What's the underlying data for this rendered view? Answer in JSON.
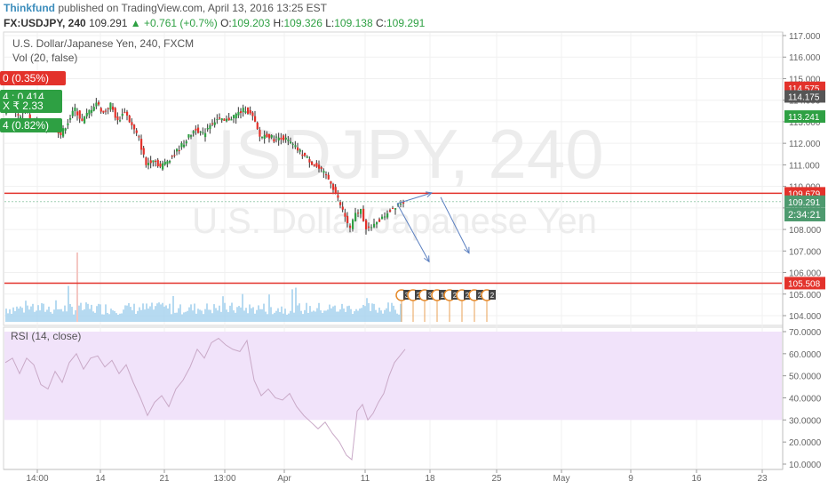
{
  "header": {
    "author": "Thinkfund",
    "published": "published on TradingView.com, April 13, 2016 13:25 EST",
    "symbol": "FX:USDJPY, 240",
    "last": "109.291",
    "change": "▲ +0.761 (+0.7%)",
    "o_label": "O:",
    "o_value": "109.203",
    "h_label": "H:",
    "h_value": "109.326",
    "l_label": "L:",
    "l_value": "109.138",
    "c_label": "C:",
    "c_value": "109.291"
  },
  "price_pane": {
    "title": "U.S. Dollar/Japanese Yen, 240, FXCM",
    "vol_label": "Vol (20, false)",
    "watermark_symbol": "USDJPY, 240",
    "watermark_name": "U.S. Dollar/Japanese Yen",
    "left_badges": [
      "0 (0.35%)",
      "4 : 0.414",
      "X ₹  2.33",
      "4 (0.82%)"
    ],
    "countdown": "2:34:21"
  },
  "rsi_pane": {
    "title": "RSI (14, close)"
  },
  "colors": {
    "up": "#2ea043",
    "down": "#e3322b",
    "line": "#e3322b",
    "rsi": "#c9a9c7",
    "rsi_band": "#f1e3fa",
    "arrow": "#5a7fc0",
    "volume": "#a9d3ee"
  },
  "chart_data": [
    {
      "type": "candlestick",
      "symbol": "USDJPY",
      "timeframe": "240",
      "x_tick_labels": [
        "14:00",
        "14",
        "21",
        "13:00",
        "Apr",
        "11",
        "18",
        "25",
        "May",
        "9",
        "16",
        "23"
      ],
      "y_ticks": [
        104.0,
        105.0,
        106.0,
        107.0,
        108.0,
        109.0,
        110.0,
        111.0,
        112.0,
        113.0,
        114.0,
        115.0,
        116.0,
        117.0
      ],
      "y_tick_labels": [
        "104.000",
        "105.000",
        "106.000",
        "107.000",
        "108.000",
        "109.000",
        "110.000",
        "111.000",
        "112.000",
        "113.000",
        "114.000",
        "115.000",
        "116.000",
        "117.000"
      ],
      "ylim": [
        103.5,
        117.2
      ],
      "close_path": [
        {
          "x": 0,
          "y": 113.5
        },
        {
          "x": 8,
          "y": 113.8
        },
        {
          "x": 16,
          "y": 113.2
        },
        {
          "x": 24,
          "y": 113.6
        },
        {
          "x": 32,
          "y": 113.0
        },
        {
          "x": 40,
          "y": 112.9
        },
        {
          "x": 48,
          "y": 112.6
        },
        {
          "x": 56,
          "y": 112.9
        },
        {
          "x": 64,
          "y": 112.4
        },
        {
          "x": 72,
          "y": 113.0
        },
        {
          "x": 80,
          "y": 113.6
        },
        {
          "x": 88,
          "y": 113.0
        },
        {
          "x": 96,
          "y": 113.5
        },
        {
          "x": 104,
          "y": 113.9
        },
        {
          "x": 112,
          "y": 113.4
        },
        {
          "x": 120,
          "y": 113.8
        },
        {
          "x": 128,
          "y": 113.0
        },
        {
          "x": 136,
          "y": 113.5
        },
        {
          "x": 144,
          "y": 112.8
        },
        {
          "x": 152,
          "y": 112.2
        },
        {
          "x": 160,
          "y": 111.0
        },
        {
          "x": 168,
          "y": 111.3
        },
        {
          "x": 176,
          "y": 110.9
        },
        {
          "x": 184,
          "y": 111.2
        },
        {
          "x": 192,
          "y": 111.5
        },
        {
          "x": 200,
          "y": 111.9
        },
        {
          "x": 208,
          "y": 112.3
        },
        {
          "x": 216,
          "y": 112.7
        },
        {
          "x": 224,
          "y": 112.4
        },
        {
          "x": 232,
          "y": 112.9
        },
        {
          "x": 240,
          "y": 113.1
        },
        {
          "x": 248,
          "y": 113.0
        },
        {
          "x": 256,
          "y": 113.2
        },
        {
          "x": 264,
          "y": 113.4
        },
        {
          "x": 272,
          "y": 113.6
        },
        {
          "x": 280,
          "y": 113.2
        },
        {
          "x": 288,
          "y": 112.3
        },
        {
          "x": 296,
          "y": 112.4
        },
        {
          "x": 304,
          "y": 112.2
        },
        {
          "x": 312,
          "y": 112.3
        },
        {
          "x": 320,
          "y": 112.1
        },
        {
          "x": 328,
          "y": 111.8
        },
        {
          "x": 336,
          "y": 111.5
        },
        {
          "x": 344,
          "y": 111.2
        },
        {
          "x": 352,
          "y": 110.9
        },
        {
          "x": 360,
          "y": 110.6
        },
        {
          "x": 368,
          "y": 110.2
        },
        {
          "x": 376,
          "y": 109.4
        },
        {
          "x": 384,
          "y": 108.6
        },
        {
          "x": 390,
          "y": 108.0
        },
        {
          "x": 396,
          "y": 108.7
        },
        {
          "x": 402,
          "y": 108.9
        },
        {
          "x": 408,
          "y": 108.1
        },
        {
          "x": 414,
          "y": 108.0
        },
        {
          "x": 420,
          "y": 108.4
        },
        {
          "x": 426,
          "y": 108.5
        },
        {
          "x": 432,
          "y": 108.8
        },
        {
          "x": 438,
          "y": 109.0
        },
        {
          "x": 444,
          "y": 109.2
        },
        {
          "x": 450,
          "y": 109.3
        }
      ],
      "horizontal_lines": [
        {
          "price": 109.679,
          "label": "109.679"
        },
        {
          "price": 105.508,
          "label": "105.508"
        }
      ],
      "price_labels": [
        {
          "price": 114.575,
          "label": "114.575",
          "color": "#e3322b"
        },
        {
          "price": 114.175,
          "label": "114.175",
          "color": "#555555"
        },
        {
          "price": 113.241,
          "label": "113.241",
          "color": "#2ea043"
        },
        {
          "price": 109.679,
          "label": "109.679",
          "color": "#e3322b"
        },
        {
          "price": 109.291,
          "label": "109.291",
          "color": "#4e9a6f"
        },
        {
          "price": 105.508,
          "label": "105.508",
          "color": "#e3322b"
        }
      ],
      "projection_arrows": [
        {
          "from": [
            447,
            109.2
          ],
          "to": [
            486,
            109.7
          ]
        },
        {
          "from": [
            447,
            109.2
          ],
          "to": [
            483,
            106.5
          ]
        },
        {
          "from": [
            496,
            109.5
          ],
          "to": [
            528,
            106.9
          ]
        }
      ],
      "event_badges": [
        "3",
        "2",
        "3",
        "1",
        "2",
        "2",
        "2",
        "2"
      ]
    },
    {
      "type": "line",
      "name": "RSI (14, close)",
      "y_ticks": [
        10,
        20,
        30,
        40,
        50,
        60,
        70
      ],
      "y_tick_labels": [
        "10.0000",
        "20.0000",
        "30.0000",
        "40.0000",
        "50.0000",
        "60.0000",
        "70.0000"
      ],
      "ylim": [
        8,
        72
      ],
      "band": [
        30,
        70
      ],
      "x": [
        0,
        8,
        16,
        24,
        32,
        40,
        48,
        56,
        64,
        72,
        80,
        88,
        96,
        104,
        112,
        120,
        128,
        136,
        144,
        152,
        160,
        168,
        176,
        184,
        192,
        200,
        208,
        216,
        224,
        232,
        240,
        248,
        256,
        264,
        272,
        280,
        288,
        296,
        304,
        312,
        320,
        328,
        336,
        344,
        352,
        360,
        368,
        376,
        384,
        390,
        396,
        402,
        408,
        414,
        420,
        426,
        432,
        438,
        444,
        450
      ],
      "y": [
        56,
        58,
        51,
        58,
        55,
        46,
        44,
        52,
        47,
        56,
        60,
        53,
        58,
        59,
        54,
        57,
        51,
        55,
        47,
        40,
        32,
        38,
        41,
        36,
        44,
        48,
        54,
        62,
        58,
        65,
        67,
        64,
        62,
        61,
        66,
        48,
        41,
        44,
        40,
        39,
        42,
        36,
        32,
        29,
        26,
        29,
        24,
        20,
        14,
        12,
        34,
        37,
        30,
        33,
        38,
        42,
        50,
        56,
        59,
        62
      ]
    }
  ]
}
